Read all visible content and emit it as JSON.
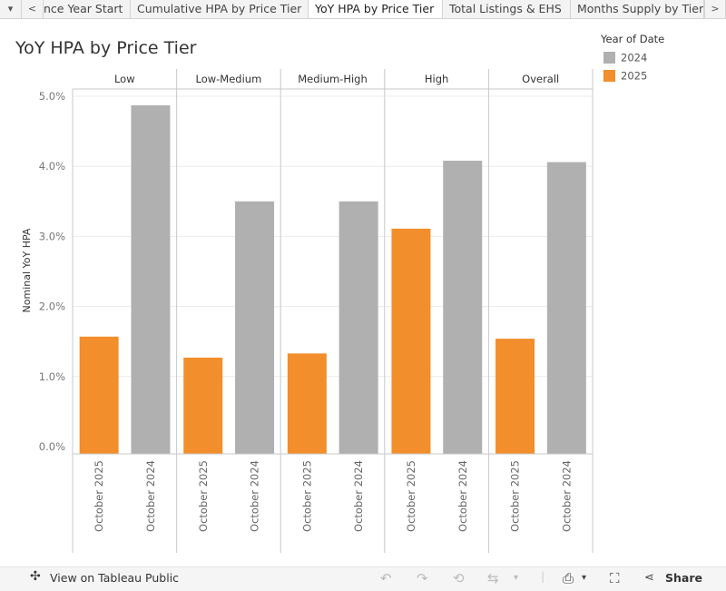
{
  "tabs": {
    "controls": {
      "menu": "▾",
      "prev": "<",
      "next": ">"
    },
    "items": [
      {
        "label": "nce Year Start",
        "active": false
      },
      {
        "label": "Cumulative HPA by Price Tier",
        "active": false
      },
      {
        "label": "YoY HPA by Price Tier",
        "active": true
      },
      {
        "label": "Total Listings & EHS",
        "active": false
      },
      {
        "label": "Months Supply by Tier",
        "active": false
      }
    ]
  },
  "legend": {
    "title": "Year of Date",
    "items": [
      {
        "label": "2024",
        "color": "#b0b0b0"
      },
      {
        "label": "2025",
        "color": "#f28e2b"
      }
    ]
  },
  "toolbar": {
    "view_label": "View on Tableau Public",
    "share_label": "Share"
  },
  "chart_data": {
    "type": "bar",
    "title": "YoY HPA by Price Tier",
    "ylabel": "Nominal YoY HPA",
    "xlabel": "",
    "ylim": [
      0,
      0.052
    ],
    "yticks": [
      {
        "value": 0.0,
        "label": "0.0%"
      },
      {
        "value": 0.01,
        "label": "1.0%"
      },
      {
        "value": 0.02,
        "label": "2.0%"
      },
      {
        "value": 0.03,
        "label": "3.0%"
      },
      {
        "value": 0.04,
        "label": "4.0%"
      },
      {
        "value": 0.05,
        "label": "5.0%"
      }
    ],
    "grid": true,
    "legend": "top-right",
    "panels": [
      {
        "name": "Low",
        "bars": [
          {
            "label": "October 2025",
            "year": "2025",
            "value": 0.0157
          },
          {
            "label": "October 2024",
            "year": "2024",
            "value": 0.0487
          }
        ]
      },
      {
        "name": "Low-Medium",
        "bars": [
          {
            "label": "October 2025",
            "year": "2025",
            "value": 0.0127
          },
          {
            "label": "October 2024",
            "year": "2024",
            "value": 0.035
          }
        ]
      },
      {
        "name": "Medium-High",
        "bars": [
          {
            "label": "October 2025",
            "year": "2025",
            "value": 0.0133
          },
          {
            "label": "October 2024",
            "year": "2024",
            "value": 0.035
          }
        ]
      },
      {
        "name": "High",
        "bars": [
          {
            "label": "October 2025",
            "year": "2025",
            "value": 0.0311
          },
          {
            "label": "October 2024",
            "year": "2024",
            "value": 0.0408
          }
        ]
      },
      {
        "name": "Overall",
        "bars": [
          {
            "label": "October 2025",
            "year": "2025",
            "value": 0.0154
          },
          {
            "label": "October 2024",
            "year": "2024",
            "value": 0.0406
          }
        ]
      }
    ]
  }
}
